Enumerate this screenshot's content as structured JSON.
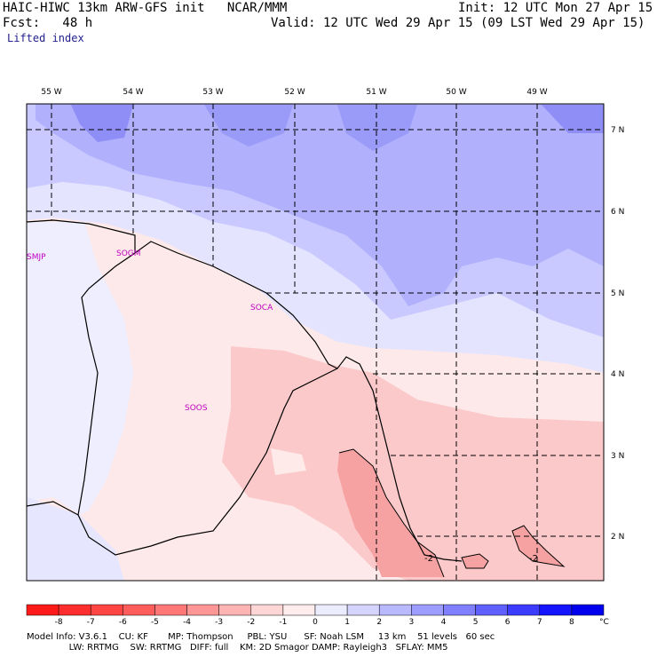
{
  "header": {
    "title": "HAIC-HIWC 13km ARW-GFS init   NCAR/MMM",
    "init": "Init: 12 UTC Mon 27 Apr 15",
    "fcst": "Fcst:   48 h",
    "valid": "Valid: 12 UTC Wed 29 Apr 15 (09 LST Wed 29 Apr 15)",
    "field": "Lifted index"
  },
  "map": {
    "longitude_labels": [
      "55 W",
      "54 W",
      "53 W",
      "52 W",
      "51 W",
      "50 W",
      "49 W"
    ],
    "latitude_labels": [
      "7 N",
      "6 N",
      "5 N",
      "4 N",
      "3 N",
      "2 N"
    ],
    "stations": [
      "SMJP",
      "SOGM",
      "SOCA",
      "SOOS"
    ],
    "contour_labels": [
      "-2",
      "-2"
    ]
  },
  "colorbar": {
    "labels": [
      "-8",
      "-7",
      "-6",
      "-5",
      "-4",
      "-3",
      "-2",
      "-1",
      "0",
      "1",
      "2",
      "3",
      "4",
      "5",
      "6",
      "7",
      "8"
    ],
    "unit": "°C",
    "colors": [
      "#ff1a1a",
      "#ff2e2e",
      "#ff4444",
      "#ff5c5c",
      "#ff7878",
      "#ff9696",
      "#ffb4b4",
      "#ffd6d6",
      "#ffecec",
      "#ececff",
      "#d4d4ff",
      "#b9b9ff",
      "#9d9dff",
      "#8080ff",
      "#6060ff",
      "#3c3cff",
      "#1414ff",
      "#0000ee"
    ]
  },
  "footer": {
    "line1": "Model Info: V3.6.1    CU: KF       MP: Thompson     PBL: YSU      SF: Noah LSM     13 km    51 levels   60 sec",
    "line2": "               LW: RRTMG    SW: RRTMG   DIFF: full    KM: 2D Smagor DAMP: Rayleigh3   SFLAY: MM5"
  }
}
